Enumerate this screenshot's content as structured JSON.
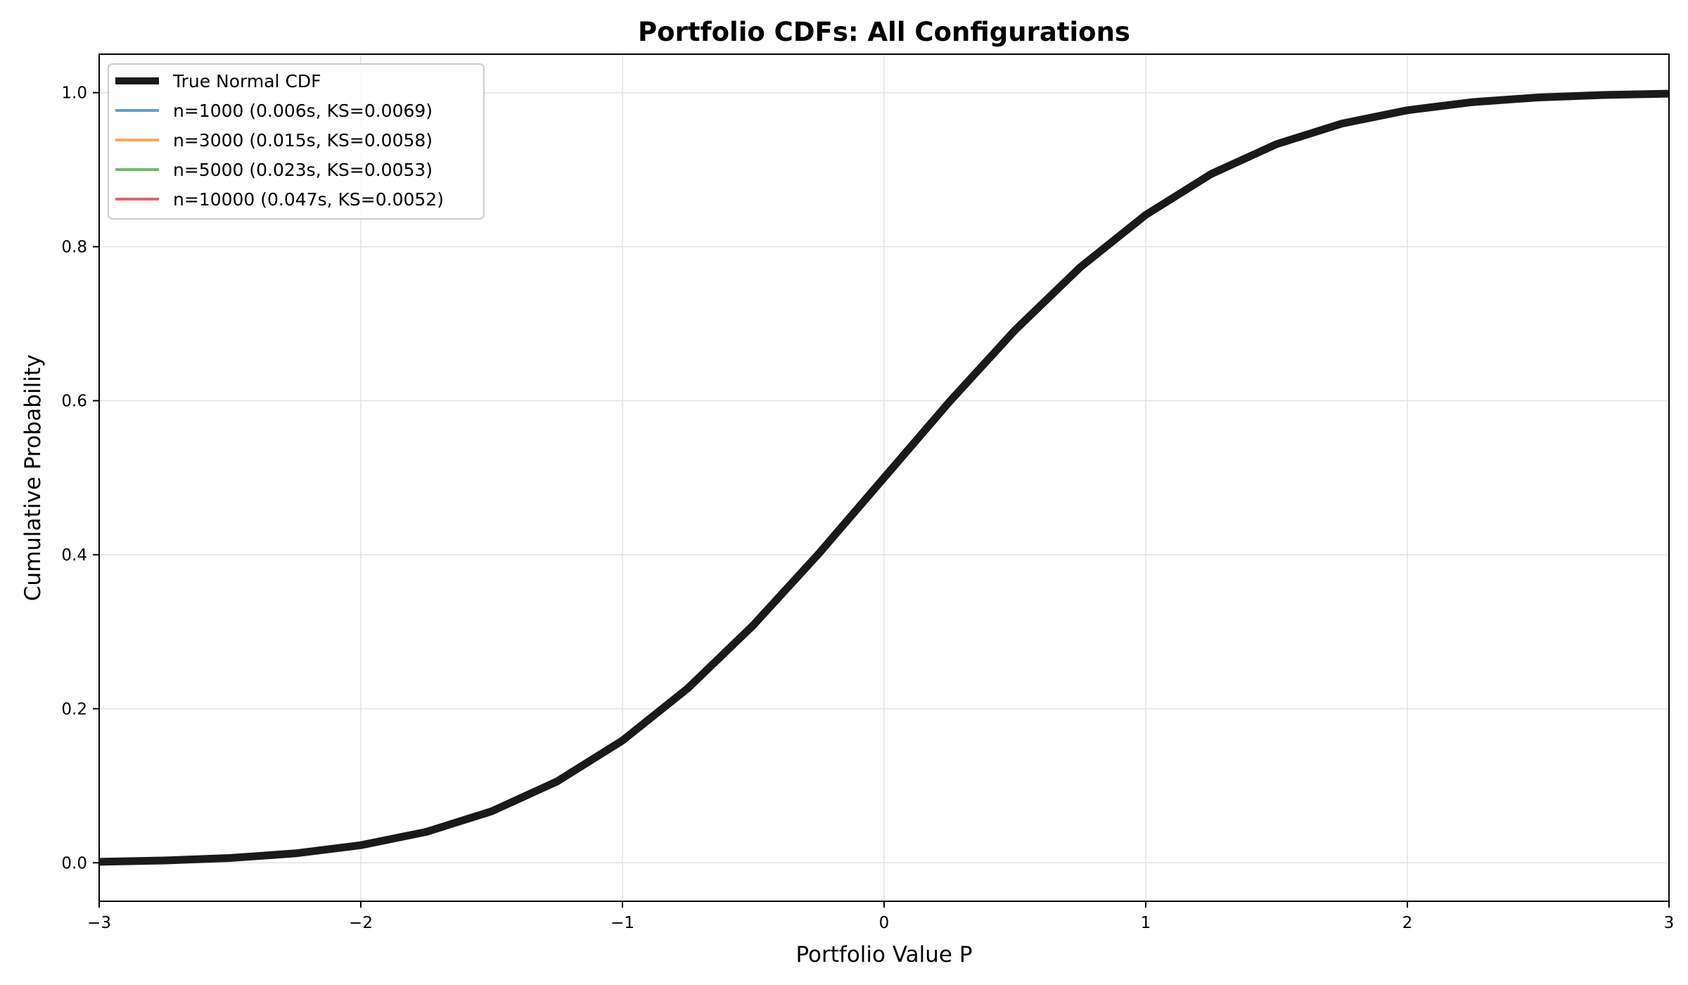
{
  "chart_data": {
    "type": "line",
    "title": "Portfolio CDFs: All Configurations",
    "xlabel": "Portfolio Value P",
    "ylabel": "Cumulative Probability",
    "xlim": [
      -3,
      3
    ],
    "ylim": [
      -0.05,
      1.05
    ],
    "xticks": [
      -3,
      -2,
      -1,
      0,
      1,
      2,
      3
    ],
    "xtick_labels": [
      "−3",
      "−2",
      "−1",
      "0",
      "1",
      "2",
      "3"
    ],
    "yticks": [
      0.0,
      0.2,
      0.4,
      0.6,
      0.8,
      1.0
    ],
    "ytick_labels": [
      "0.0",
      "0.2",
      "0.4",
      "0.6",
      "0.8",
      "1.0"
    ],
    "grid": true,
    "legend_position": "top-left",
    "x": [
      -3.0,
      -2.75,
      -2.5,
      -2.25,
      -2.0,
      -1.75,
      -1.5,
      -1.25,
      -1.0,
      -0.75,
      -0.5,
      -0.25,
      0.0,
      0.25,
      0.5,
      0.75,
      1.0,
      1.25,
      1.5,
      1.75,
      2.0,
      2.25,
      2.5,
      2.75,
      3.0
    ],
    "series": [
      {
        "name": "True Normal CDF",
        "color": "#1a1a1a",
        "values": [
          0.0013,
          0.003,
          0.0062,
          0.0122,
          0.0228,
          0.0401,
          0.0668,
          0.1056,
          0.1587,
          0.2266,
          0.3085,
          0.4013,
          0.5,
          0.5987,
          0.6915,
          0.7734,
          0.8413,
          0.8944,
          0.9332,
          0.9599,
          0.9772,
          0.9878,
          0.9938,
          0.997,
          0.9987
        ]
      },
      {
        "name": "n=1000 (0.006s, KS=0.0069)",
        "color": "#1f77b4",
        "values": [
          0.0013,
          0.003,
          0.0062,
          0.0122,
          0.0228,
          0.0401,
          0.0668,
          0.1056,
          0.1587,
          0.2266,
          0.3085,
          0.4013,
          0.5,
          0.5987,
          0.6915,
          0.7734,
          0.8413,
          0.8944,
          0.9332,
          0.9599,
          0.9772,
          0.9878,
          0.9938,
          0.997,
          0.9987
        ]
      },
      {
        "name": "n=3000 (0.015s, KS=0.0058)",
        "color": "#ff7f0e",
        "values": [
          0.0013,
          0.003,
          0.0062,
          0.0122,
          0.0228,
          0.0401,
          0.0668,
          0.1056,
          0.1587,
          0.2266,
          0.3085,
          0.4013,
          0.5,
          0.5987,
          0.6915,
          0.7734,
          0.8413,
          0.8944,
          0.9332,
          0.9599,
          0.9772,
          0.9878,
          0.9938,
          0.997,
          0.9987
        ]
      },
      {
        "name": "n=5000 (0.023s, KS=0.0053)",
        "color": "#2ca02c",
        "values": [
          0.0013,
          0.003,
          0.0062,
          0.0122,
          0.0228,
          0.0401,
          0.0668,
          0.1056,
          0.1587,
          0.2266,
          0.3085,
          0.4013,
          0.5,
          0.5987,
          0.6915,
          0.7734,
          0.8413,
          0.8944,
          0.9332,
          0.9599,
          0.9772,
          0.9878,
          0.9938,
          0.997,
          0.9987
        ]
      },
      {
        "name": "n=10000 (0.047s, KS=0.0052)",
        "color": "#d62728",
        "values": [
          0.0013,
          0.003,
          0.0062,
          0.0122,
          0.0228,
          0.0401,
          0.0668,
          0.1056,
          0.1587,
          0.2266,
          0.3085,
          0.4013,
          0.5,
          0.5987,
          0.6915,
          0.7734,
          0.8413,
          0.8944,
          0.9332,
          0.9599,
          0.9772,
          0.9878,
          0.9938,
          0.997,
          0.9987
        ]
      }
    ]
  }
}
